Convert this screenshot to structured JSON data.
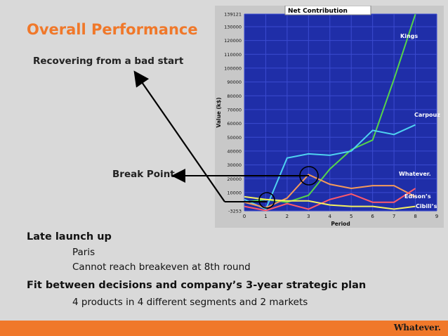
{
  "slide": {
    "title": "Overall Performance",
    "subtitle": "Recovering from a bad start",
    "break_point_label": "Break Point",
    "sections": [
      {
        "heading": "Late launch up",
        "items": [
          "Paris",
          "Cannot reach breakeven at 8th round"
        ]
      },
      {
        "heading": "Fit between decisions and company’s 3-year strategic plan",
        "items": [
          "4 products in 4 different segments and 2 markets"
        ]
      }
    ],
    "footer_brand": "Whatever."
  },
  "colors": {
    "accent": "#f0782a",
    "chart_bg": "#1f2ea8",
    "axis_panel": "#c8c8c8"
  },
  "chart_data": {
    "type": "line",
    "title": "Net Contribution",
    "xlabel": "Period",
    "ylabel": "Value (k$)",
    "xlim": [
      0,
      9
    ],
    "ylim": [
      -3253,
      139121
    ],
    "xticks": [
      "0",
      "1",
      "2",
      "3",
      "4",
      "5",
      "6",
      "7",
      "8",
      "9"
    ],
    "yticks": [
      -3253,
      10000,
      20000,
      30000,
      40000,
      50000,
      60000,
      70000,
      80000,
      90000,
      100000,
      110000,
      120000,
      130000,
      139121
    ],
    "ytick_labels": [
      "-3253",
      "10000",
      "20000",
      "30000",
      "40000",
      "50000",
      "60000",
      "70000",
      "80000",
      "90000",
      "100000",
      "110000",
      "120000",
      "130000",
      "139121"
    ],
    "x": [
      0,
      1,
      2,
      3,
      4,
      5,
      6,
      7,
      8
    ],
    "series": [
      {
        "name": "Kings",
        "color": "#55d44a",
        "values": [
          3000,
          5000,
          3000,
          8000,
          27000,
          41000,
          48000,
          92000,
          139000
        ]
      },
      {
        "name": "Carpouz",
        "color": "#4fd2f0",
        "values": [
          5000,
          -2000,
          35000,
          38000,
          37000,
          40000,
          55000,
          52000,
          59000
        ]
      },
      {
        "name": "Whatever.",
        "color": "#f59a5a",
        "values": [
          3000,
          -1000,
          6000,
          23000,
          16000,
          13000,
          15000,
          15000,
          7000
        ]
      },
      {
        "name": "Edison’s",
        "color": "#ff5a6a",
        "values": [
          0,
          -3000,
          2000,
          -2000,
          5000,
          9000,
          3000,
          3000,
          13000
        ]
      },
      {
        "name": "Cibili’s",
        "color": "#f5f060",
        "values": [
          7000,
          5000,
          4000,
          4000,
          1000,
          0,
          0,
          -2000,
          0
        ]
      }
    ]
  }
}
